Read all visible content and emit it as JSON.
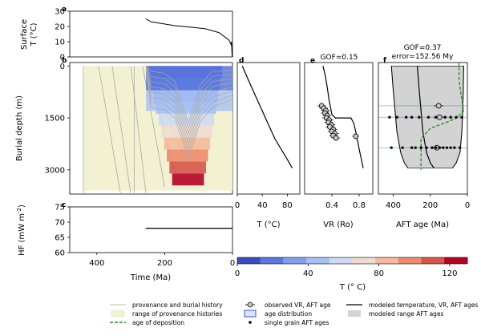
{
  "colors": {
    "provenance_fill": "#f2f2d2",
    "history_line": "#a8a8a8",
    "deposition": "#228b22",
    "model_range": "#d3d3d3",
    "age_distribution": "#3355cc",
    "cmap": [
      "#3b4cc0",
      "#5a78e0",
      "#7f9ff0",
      "#a8c0f5",
      "#cfdaf0",
      "#eedcd0",
      "#f5b99b",
      "#ec8c6c",
      "#d8544a",
      "#b40426"
    ]
  },
  "panel_labels": [
    "a",
    "b",
    "c",
    "d",
    "e",
    "f"
  ],
  "chart_data": [
    {
      "panel": "a",
      "type": "line",
      "ylabel": "Surface\nT (°C)",
      "xlim": [
        480,
        0
      ],
      "ylim": [
        0,
        30
      ],
      "yticks": [
        0,
        10,
        20,
        30
      ],
      "x": [
        256,
        240,
        210,
        170,
        120,
        80,
        40,
        10,
        4,
        3,
        1
      ],
      "y": [
        25,
        23,
        22,
        20.5,
        19.5,
        18.5,
        16,
        11,
        8,
        10,
        0
      ]
    },
    {
      "panel": "b",
      "type": "line",
      "ylabel": "Burial depth (m)",
      "xlim": [
        480,
        0
      ],
      "ylim": [
        3700,
        -100
      ],
      "yticks": [
        0,
        1500,
        3000
      ],
      "provenance_range": [
        440,
        0
      ],
      "color_scale": {
        "min": 0,
        "max": 130
      }
    },
    {
      "panel": "c",
      "type": "line",
      "xlabel": "Time (Ma)",
      "ylabel": "HF (mW m$^{-2}$)",
      "xlim": [
        480,
        0
      ],
      "ylim": [
        60,
        75
      ],
      "xticks": [
        400,
        200,
        0
      ],
      "yticks": [
        60,
        65,
        70,
        75
      ],
      "x": [
        256,
        0
      ],
      "y": [
        68,
        68
      ]
    },
    {
      "panel": "d",
      "type": "line",
      "xlabel": "T (°C)",
      "xlim": [
        0,
        100
      ],
      "xticks": [
        0,
        40,
        80
      ],
      "ylim": [
        3700,
        -100
      ],
      "x": [
        8,
        20,
        40,
        60,
        80,
        88
      ],
      "y": [
        0,
        500,
        1300,
        2100,
        2700,
        2950
      ]
    },
    {
      "panel": "e",
      "type": "scatter",
      "title": "GOF=0.15",
      "xlabel": "VR (Ro)",
      "xlim": [
        0,
        1.0
      ],
      "xticks": [
        0.4,
        0.8
      ],
      "ylim": [
        3700,
        -100
      ],
      "model_x": [
        0.27,
        0.3,
        0.33,
        0.36,
        0.4,
        0.45,
        0.53,
        0.68,
        0.72,
        0.75,
        0.8,
        0.86
      ],
      "model_y": [
        0,
        250,
        600,
        1000,
        1400,
        1500,
        1500,
        1500,
        1650,
        1900,
        2400,
        2950
      ],
      "observed": [
        {
          "vr": 0.25,
          "depth": 1150,
          "err": 0.06
        },
        {
          "vr": 0.28,
          "depth": 1220,
          "err": 0.06
        },
        {
          "vr": 0.31,
          "depth": 1290,
          "err": 0.06
        },
        {
          "vr": 0.3,
          "depth": 1360,
          "err": 0.06
        },
        {
          "vr": 0.33,
          "depth": 1430,
          "err": 0.06
        },
        {
          "vr": 0.32,
          "depth": 1500,
          "err": 0.06
        },
        {
          "vr": 0.36,
          "depth": 1560,
          "err": 0.06
        },
        {
          "vr": 0.35,
          "depth": 1630,
          "err": 0.06
        },
        {
          "vr": 0.39,
          "depth": 1700,
          "err": 0.06
        },
        {
          "vr": 0.37,
          "depth": 1760,
          "err": 0.06
        },
        {
          "vr": 0.42,
          "depth": 1830,
          "err": 0.06
        },
        {
          "vr": 0.4,
          "depth": 1890,
          "err": 0.06
        },
        {
          "vr": 0.44,
          "depth": 1950,
          "err": 0.06
        },
        {
          "vr": 0.42,
          "depth": 2010,
          "err": 0.06
        },
        {
          "vr": 0.46,
          "depth": 2080,
          "err": 0.06
        },
        {
          "vr": 0.75,
          "depth": 2030,
          "err": 0.05
        }
      ]
    },
    {
      "panel": "f",
      "type": "scatter",
      "title": "GOF=0.37",
      "subtitle": "error=152.56 My",
      "xlabel": "AFT age (Ma)",
      "xlim": [
        480,
        0
      ],
      "xticks": [
        400,
        200,
        0
      ],
      "ylim": [
        3700,
        -100
      ],
      "model_left_x": [
        410,
        400,
        390,
        380,
        360,
        340,
        320
      ],
      "model_left_y": [
        0,
        700,
        1300,
        1900,
        2500,
        2800,
        2950
      ],
      "model_right_x": [
        20,
        22,
        25,
        30,
        40,
        60,
        80
      ],
      "model_right_y": [
        0,
        700,
        1300,
        1900,
        2500,
        2800,
        2950
      ],
      "model_mean_x": [
        270,
        260,
        250,
        240,
        220,
        200,
        180
      ],
      "model_mean_y": [
        0,
        700,
        1300,
        1900,
        2500,
        2800,
        2950
      ],
      "deposition_x": [
        45,
        45,
        35,
        25,
        20,
        60,
        100,
        200,
        250,
        250
      ],
      "deposition_y": [
        -100,
        400,
        800,
        1100,
        1300,
        1500,
        1600,
        1800,
        2100,
        3000
      ],
      "observed": [
        {
          "age": 155,
          "depth": 1150,
          "err": 25
        },
        {
          "age": 150,
          "depth": 1480,
          "err": 30
        },
        {
          "age": 165,
          "depth": 2360,
          "err": 35
        }
      ],
      "single_grains": [
        {
          "depth": 1480,
          "ages": [
            420,
            380,
            330,
            300,
            260,
            210,
            170,
            120,
            90,
            60,
            30
          ]
        },
        {
          "depth": 2360,
          "ages": [
            410,
            350,
            300,
            280,
            250,
            220,
            190,
            170,
            150,
            130,
            110,
            90,
            70,
            40
          ]
        }
      ]
    },
    {
      "panel": "colorbar",
      "type": "heatmap",
      "xlabel": "T (° C)",
      "xlim": [
        0,
        130
      ],
      "xticks": [
        0,
        40,
        80,
        120
      ]
    }
  ],
  "legend": [
    {
      "label": "provenance and burial history",
      "kind": "thin-line"
    },
    {
      "label": "range of provenance histories",
      "kind": "fill"
    },
    {
      "label": "age of deposition",
      "kind": "dashed"
    },
    {
      "label": "observed VR, AFT age",
      "kind": "errmarker"
    },
    {
      "label": "age distribution",
      "kind": "boxblue"
    },
    {
      "label": "single grain AFT ages",
      "kind": "dot"
    },
    {
      "label": "modeled temperature, VR, AFT ages",
      "kind": "thick-line"
    },
    {
      "label": "modeled range AFT ages",
      "kind": "gray"
    }
  ]
}
